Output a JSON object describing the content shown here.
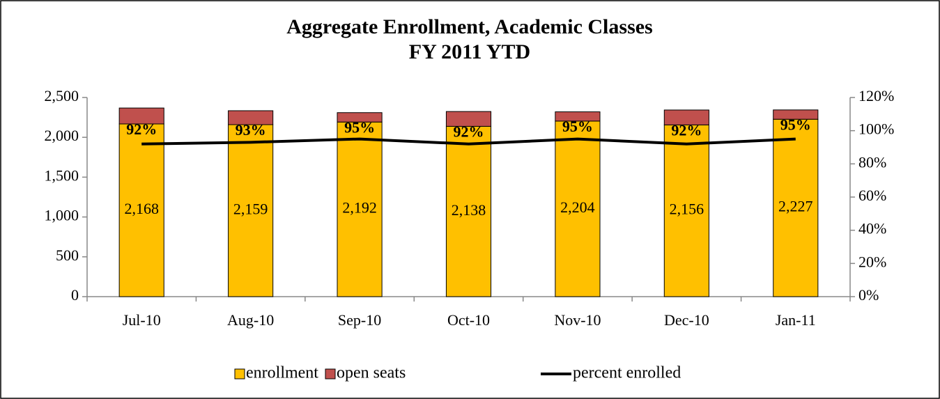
{
  "chart_data": {
    "type": "bar",
    "stacked": true,
    "title": "Aggregate Enrollment, Academic Classes",
    "subtitle": "FY 2011 YTD",
    "categories": [
      "Jul-10",
      "Aug-10",
      "Sep-10",
      "Oct-10",
      "Nov-10",
      "Dec-10",
      "Jan-11"
    ],
    "series": [
      {
        "name": "enrollment",
        "color": "#ffc000",
        "values": [
          2168,
          2159,
          2192,
          2138,
          2204,
          2156,
          2227
        ],
        "value_labels": [
          "2,168",
          "2,159",
          "2,192",
          "2,138",
          "2,204",
          "2,156",
          "2,227"
        ]
      },
      {
        "name": "open seats",
        "color": "#c0504d",
        "values": [
          200,
          175,
          118,
          186,
          116,
          187,
          117
        ]
      },
      {
        "name": "percent enrolled",
        "color": "#000000",
        "type": "line",
        "axis": "y2",
        "values": [
          92,
          93,
          95,
          92,
          95,
          92,
          95
        ],
        "value_labels": [
          "92%",
          "93%",
          "95%",
          "92%",
          "95%",
          "92%",
          "95%"
        ]
      }
    ],
    "ylim": [
      0,
      2500
    ],
    "yticks": [
      0,
      500,
      {
        "value": 1000,
        "label": "1,000"
      },
      {
        "value": 1500,
        "label": "1,500"
      },
      {
        "value": 2000,
        "label": "2,000"
      },
      {
        "value": 2500,
        "label": "2,500"
      }
    ],
    "y2lim": [
      0,
      120
    ],
    "y2ticks": [
      {
        "value": 0,
        "label": "0%"
      },
      {
        "value": 20,
        "label": "20%"
      },
      {
        "value": 40,
        "label": "40%"
      },
      {
        "value": 60,
        "label": "60%"
      },
      {
        "value": 80,
        "label": "80%"
      },
      {
        "value": 100,
        "label": "100%"
      },
      {
        "value": 120,
        "label": "120%"
      }
    ],
    "legend": "bottom"
  }
}
